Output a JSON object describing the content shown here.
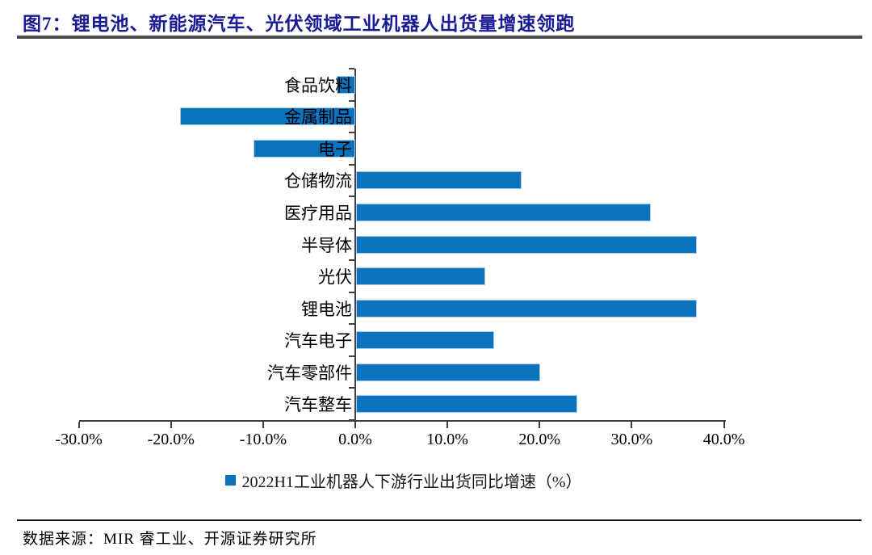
{
  "header": {
    "title": "图7：锂电池、新能源汽车、光伏领域工业机器人出货量增速领跑"
  },
  "chart_data": {
    "type": "bar",
    "orientation": "horizontal",
    "title": "",
    "categories": [
      "食品饮料",
      "金属制品",
      "电子",
      "仓储物流",
      "医疗用品",
      "半导体",
      "光伏",
      "锂电池",
      "汽车电子",
      "汽车零部件",
      "汽车整车"
    ],
    "values": [
      -2,
      -19,
      -11,
      18,
      32,
      37,
      14,
      37,
      15,
      20,
      24
    ],
    "unit": "%",
    "xlabel": "",
    "ylabel": "",
    "xlim": [
      -30,
      40
    ],
    "x_ticks": [
      -30,
      -20,
      -10,
      0,
      10,
      20,
      30,
      40
    ],
    "x_tick_labels": [
      "-30.0%",
      "-20.0%",
      "-10.0%",
      "0.0%",
      "10.0%",
      "20.0%",
      "30.0%",
      "40.0%"
    ],
    "grid": false,
    "legend_position": "bottom",
    "legend": [
      "2022H1工业机器人下游行业出货同比增速（%）"
    ]
  },
  "footer": {
    "source": "数据来源：MIR 睿工业、开源证券研究所"
  },
  "colors": {
    "bar_fill": "#0B72BE",
    "bar_border": "#A9CCEA",
    "title": "#1A1A94",
    "divider": "#4D4D4D",
    "axis": "#404040"
  }
}
